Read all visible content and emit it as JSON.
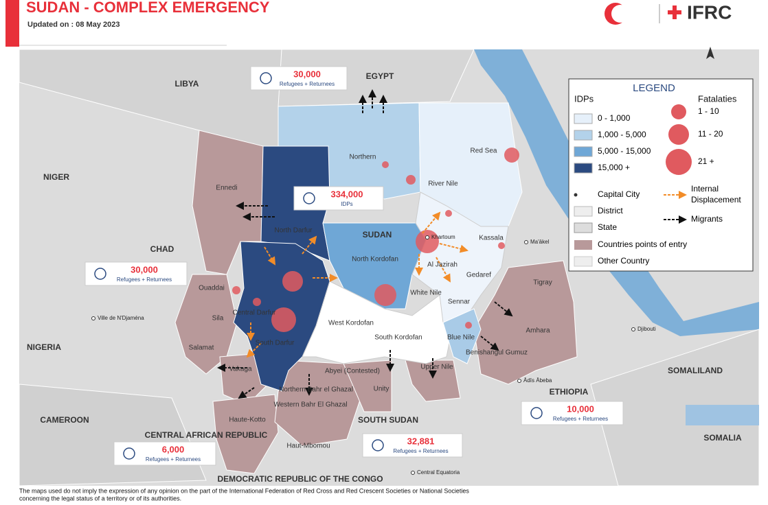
{
  "header": {
    "title": "SUDAN - COMPLEX EMERGENCY",
    "updated": "Updated on : 08 May 2023",
    "logo_text": "IFRC"
  },
  "legend": {
    "title": "LEGEND",
    "idp_title": "IDPs",
    "idp_classes": [
      "0 - 1,000",
      "1,000 - 5,000",
      "5,000 - 15,000",
      "15,000 +"
    ],
    "fatality_title": "Fatalaties",
    "fatality_classes": [
      "1 - 10",
      "11 - 20",
      "21 +"
    ],
    "capital": "Capital City",
    "internal_displacement": "Internal Displacement",
    "district": "District",
    "migrants": "Migrants",
    "state": "State",
    "entry_points": "Countries points of entry",
    "other_country": "Other Country"
  },
  "callouts": [
    {
      "value": "30,000",
      "label": "Refugees + Returnees"
    },
    {
      "value": "334,000",
      "label": "IDPs"
    },
    {
      "value": "30,000",
      "label": "Refugees + Returnees"
    },
    {
      "value": "10,000",
      "label": "Refugees + Returnees"
    },
    {
      "value": "32,881",
      "label": "Refugees + Returnees"
    },
    {
      "value": "6,000",
      "label": "Refugees + Returnees"
    }
  ],
  "countries": [
    "LIBYA",
    "EGYPT",
    "NIGER",
    "CHAD",
    "NIGERIA",
    "CAMEROON",
    "CENTRAL AFRICAN REPUBLIC",
    "DEMOCRATIC REPUBLIC OF THE CONGO",
    "SOUTH SUDAN",
    "ETHIOPIA",
    "SOMALILAND",
    "SOMALIA",
    "SUDAN"
  ],
  "regions": [
    "Northern",
    "Red Sea",
    "River Nile",
    "North Darfur",
    "North Kordofan",
    "Kassala",
    "Al Jazirah",
    "Gedaref",
    "White Nile",
    "Sennar",
    "Central Darfur",
    "West Kordofan",
    "South Kordofan",
    "Blue Nile",
    "South Darfur",
    "Ennedi",
    "Ouaddai",
    "Sila",
    "Salamat",
    "Vakaga",
    "Abyei (Contested)",
    "Upper Nile",
    "Unity",
    "Northern Bahr el Ghazal",
    "Western Bahr El Ghazal",
    "Haute-Kotto",
    "Haut-Mbomou",
    "Benishangul Gumuz",
    "Amhara",
    "Tigray"
  ],
  "cities": [
    "Khartoum",
    "Ville de N'Djaména",
    "Djibouti",
    "Ma'ākel",
    "Ādīs Ābeba",
    "Central Equatoria"
  ],
  "footer": [
    "The maps used do not imply the expression of any opinion on the part of the International Federation of Red Cross and Red Crescent Societies or National Societies",
    "concerning the legal status of a territory or of its authorities."
  ]
}
